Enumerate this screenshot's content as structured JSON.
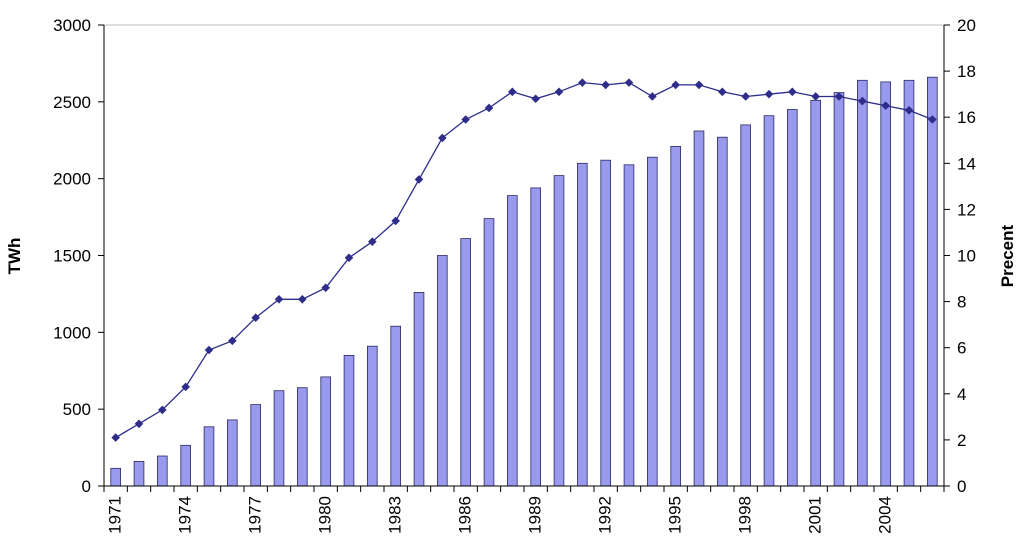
{
  "chart_data": {
    "type": "bar",
    "title": "",
    "ylabel": "TWh",
    "y2label": "Precent",
    "x_tick_labels": [
      "1971",
      "1974",
      "1977",
      "1980",
      "1983",
      "1986",
      "1989",
      "1992",
      "1995",
      "1998",
      "2001",
      "2004"
    ],
    "y_ticks": [
      "0",
      "500",
      "1000",
      "1500",
      "2000",
      "2500",
      "3000"
    ],
    "y2_ticks": [
      "0",
      "2",
      "4",
      "6",
      "8",
      "10",
      "12",
      "14",
      "16",
      "18",
      "20"
    ],
    "ylim": [
      0,
      3000
    ],
    "y2lim": [
      0,
      20
    ],
    "grid": false,
    "categories": [
      1971,
      1972,
      1973,
      1974,
      1975,
      1976,
      1977,
      1978,
      1979,
      1980,
      1981,
      1982,
      1983,
      1984,
      1985,
      1986,
      1987,
      1988,
      1989,
      1990,
      1991,
      1992,
      1993,
      1994,
      1995,
      1996,
      1997,
      1998,
      1999,
      2000,
      2001,
      2002,
      2003,
      2004,
      2005,
      2006
    ],
    "series": [
      {
        "kind": "bar",
        "axis": "left",
        "color": "#9999ee",
        "values": [
          115,
          160,
          195,
          265,
          385,
          430,
          530,
          620,
          640,
          710,
          850,
          910,
          1040,
          1260,
          1500,
          1610,
          1740,
          1890,
          1940,
          2020,
          2100,
          2120,
          2090,
          2140,
          2210,
          2310,
          2270,
          2350,
          2410,
          2450,
          2510,
          2560,
          2640,
          2630,
          2640,
          2660
        ]
      },
      {
        "kind": "line",
        "axis": "right",
        "color": "#2e2e8a",
        "values": [
          2.1,
          2.7,
          3.3,
          4.3,
          5.9,
          6.3,
          7.3,
          8.1,
          8.1,
          8.6,
          9.9,
          10.6,
          11.5,
          13.3,
          15.1,
          15.9,
          16.4,
          17.1,
          16.8,
          17.1,
          17.5,
          17.4,
          17.5,
          16.9,
          17.4,
          17.4,
          17.1,
          16.9,
          17.0,
          17.1,
          16.9,
          16.9,
          16.7,
          16.5,
          16.3,
          15.9
        ]
      }
    ]
  }
}
